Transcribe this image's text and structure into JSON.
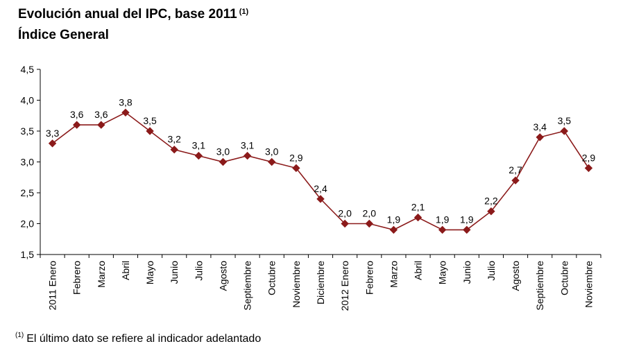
{
  "title": "Evolución anual del IPC, base 2011",
  "title_note": "(1)",
  "subtitle": "Índice General",
  "footnote_mark": "(1)",
  "footnote": "El último dato se refiere al indicador adelantado",
  "colors": {
    "series": "#8B1A1A",
    "axis": "#000000"
  },
  "chart_data": {
    "type": "line",
    "categories": [
      "2011 Enero",
      "Febrero",
      "Marzo",
      "Abril",
      "Mayo",
      "Junio",
      "Julio",
      "Agosto",
      "Septiembre",
      "Octubre",
      "Noviembre",
      "Diciembre",
      "2012 Enero",
      "Febrero",
      "Marzo",
      "Abril",
      "Mayo",
      "Junio",
      "Julio",
      "Agosto",
      "Septiembre",
      "Octubre",
      "Noviembre"
    ],
    "values": [
      3.3,
      3.6,
      3.6,
      3.8,
      3.5,
      3.2,
      3.1,
      3.0,
      3.1,
      3.0,
      2.9,
      2.4,
      2.0,
      2.0,
      1.9,
      2.1,
      1.9,
      1.9,
      2.2,
      2.7,
      3.4,
      3.5,
      2.9
    ],
    "data_labels": [
      "3,3",
      "3,6",
      "3,6",
      "3,8",
      "3,5",
      "3,2",
      "3,1",
      "3,0",
      "3,1",
      "3,0",
      "2,9",
      "2,4",
      "2,0",
      "2,0",
      "1,9",
      "2,1",
      "1,9",
      "1,9",
      "2,2",
      "2,7",
      "3,4",
      "3,5",
      "2,9"
    ],
    "ylim": [
      1.5,
      4.5
    ],
    "yticks": [
      1.5,
      2.0,
      2.5,
      3.0,
      3.5,
      4.0,
      4.5
    ],
    "ytick_labels": [
      "1,5",
      "2,0",
      "2,5",
      "3,0",
      "3,5",
      "4,0",
      "4,5"
    ],
    "grid": false,
    "marker": "diamond"
  }
}
